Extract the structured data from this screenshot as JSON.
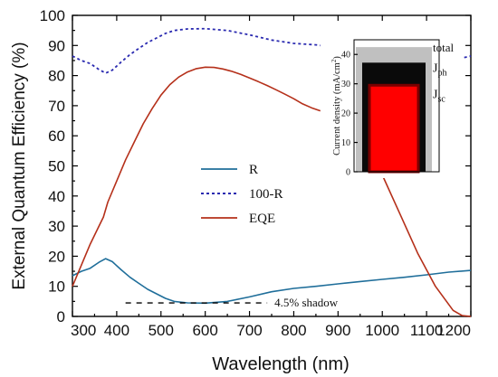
{
  "chart_data": [
    {
      "type": "line",
      "xlabel": "Wavelength (nm)",
      "ylabel": "External Quantum Efficiency (%)",
      "xlim": [
        300,
        1200
      ],
      "ylim": [
        0,
        100
      ],
      "xticks": [
        "300",
        "400",
        "500",
        "600",
        "700",
        "800",
        "900",
        "1000",
        "1100",
        "1200"
      ],
      "yticks": [
        "0",
        "10",
        "20",
        "30",
        "40",
        "50",
        "60",
        "70",
        "80",
        "90",
        "100"
      ],
      "grid": false,
      "legend_position": "center-left",
      "series": [
        {
          "name": "R",
          "color": "#1f6e9a",
          "style": "solid",
          "x": [
            300,
            320,
            340,
            360,
            375,
            390,
            410,
            430,
            450,
            470,
            490,
            510,
            530,
            560,
            600,
            650,
            700,
            750,
            800,
            850,
            900,
            950,
            1000,
            1050,
            1100,
            1150,
            1200
          ],
          "y": [
            13.5,
            15,
            16,
            18,
            19.2,
            18.2,
            15.5,
            13,
            11,
            9,
            7.5,
            6,
            5,
            4.5,
            4.4,
            5,
            6.5,
            8.2,
            9.3,
            10,
            10.8,
            11.6,
            12.3,
            13,
            13.8,
            14.7,
            15.3
          ]
        },
        {
          "name": "100-R",
          "color": "#2a2ab0",
          "style": "dotted",
          "x": [
            300,
            320,
            340,
            360,
            375,
            390,
            410,
            430,
            450,
            470,
            490,
            510,
            530,
            560,
            600,
            650,
            700,
            750,
            800,
            850,
            860
          ],
          "y": [
            86.5,
            85,
            84,
            82,
            80.8,
            81.8,
            84.5,
            87,
            89,
            91,
            92.5,
            94,
            95,
            95.5,
            95.6,
            95,
            93.5,
            91.8,
            90.7,
            90.2,
            90
          ],
          "right_fragment_x": [
            1185,
            1200
          ],
          "right_fragment_y": [
            86,
            86.5
          ]
        },
        {
          "name": "EQE",
          "color": "#b5301a",
          "style": "solid",
          "x": [
            300,
            320,
            340,
            360,
            370,
            380,
            400,
            420,
            440,
            460,
            480,
            500,
            520,
            540,
            560,
            580,
            600,
            620,
            640,
            660,
            680,
            700,
            720,
            740,
            760,
            780,
            800,
            820,
            840,
            860
          ],
          "y": [
            10,
            17,
            24,
            30,
            33,
            38,
            45,
            52,
            58,
            64,
            69,
            73.5,
            77,
            79.5,
            81.2,
            82.3,
            82.8,
            82.7,
            82.2,
            81.4,
            80.4,
            79.2,
            78,
            76.7,
            75.3,
            73.8,
            72.3,
            70.6,
            69.3,
            68.3
          ],
          "right_fragment_x": [
            1000,
            1040,
            1080,
            1120,
            1160,
            1180,
            1200
          ],
          "right_fragment_y": [
            47,
            34,
            21,
            10,
            2,
            0.3,
            0
          ]
        }
      ],
      "annotations": {
        "shadow_label": "4.5% shadow",
        "shadow_line_x": [
          420,
          740
        ],
        "shadow_line_y": 4.5
      }
    },
    {
      "type": "bar",
      "ylabel": "Current density (mA/cm²)",
      "ylabel_main": "Current density (mA/cm",
      "ylabel_sup": "2",
      "ylabel_close": ")",
      "ylim": [
        0,
        45
      ],
      "yticks": [
        "0",
        "10",
        "20",
        "30",
        "40"
      ],
      "categories": [
        "total",
        "Jph",
        "Jsc"
      ],
      "values": [
        42.5,
        37.2,
        29.5
      ],
      "colors": [
        "#c0c0c0",
        "#0a0a0a",
        "#ff0000"
      ],
      "labels": {
        "total": "total",
        "jph_main": "J",
        "jph_sub": "ph",
        "jsc_main": "J",
        "jsc_sub": "sc"
      }
    }
  ]
}
